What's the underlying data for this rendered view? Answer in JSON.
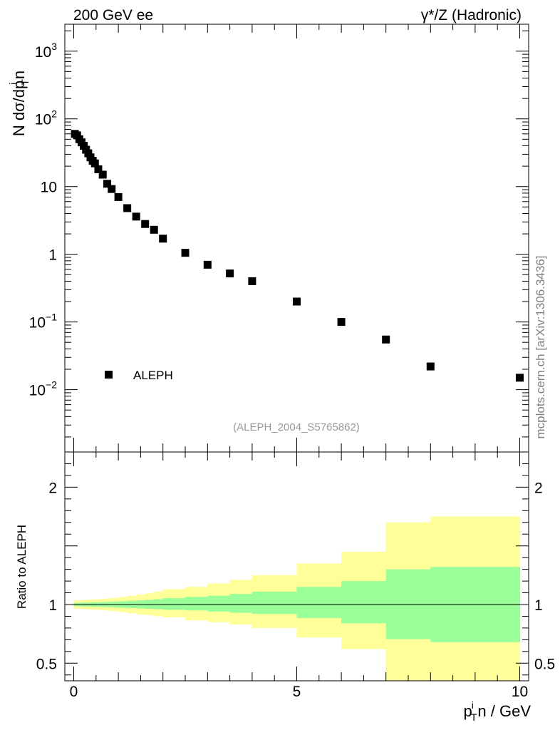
{
  "header": {
    "left": "200 GeV ee",
    "right": "γ*/Z (Hadronic)"
  },
  "watermark": "mcplots.cern.ch [arXiv:1306.3436]",
  "analysis_id": "(ALEPH_2004_S5765862)",
  "axis_labels": {
    "main_y": "N dσ/dp",
    "main_y_sub": "T",
    "main_y_sup": "i",
    "main_y_tail": "n",
    "ratio_y": "Ratio to ALEPH",
    "x_main": "p",
    "x_sup": "i",
    "x_sub": "T",
    "x_tail": "n / GeV"
  },
  "main_ticks": [
    {
      "value": 1000,
      "base": "10",
      "exp": "3"
    },
    {
      "value": 100,
      "base": "10",
      "exp": "2"
    },
    {
      "value": 10,
      "base": "10",
      "exp": ""
    },
    {
      "value": 1,
      "base": "1",
      "exp": ""
    },
    {
      "value": 0.1,
      "base": "10",
      "exp": "−1"
    },
    {
      "value": 0.01,
      "base": "10",
      "exp": "−2"
    }
  ],
  "ratio_ticks": [
    {
      "value": 2,
      "label": "2"
    },
    {
      "value": 1,
      "label": "1"
    },
    {
      "value": 0.5,
      "label": "0.5"
    }
  ],
  "x_ticks": [
    {
      "value": 0,
      "label": "0"
    },
    {
      "value": 5,
      "label": "5"
    },
    {
      "value": 10,
      "label": "10"
    }
  ],
  "colors": {
    "band_outer": "#ffff99",
    "band_inner": "#99ff99",
    "marker": "#000000"
  },
  "chart_data": [
    {
      "type": "scatter",
      "log_y": true,
      "xlim": [
        -0.2,
        10.2
      ],
      "ylim": [
        0.0012,
        2500
      ],
      "legend": {
        "position": "bottom-left",
        "entries": [
          "ALEPH"
        ]
      },
      "series": [
        {
          "name": "ALEPH",
          "marker": "square",
          "x": [
            0.025,
            0.075,
            0.125,
            0.175,
            0.225,
            0.275,
            0.325,
            0.375,
            0.425,
            0.475,
            0.55,
            0.65,
            0.75,
            0.85,
            1.0,
            1.2,
            1.4,
            1.6,
            1.8,
            2.0,
            2.5,
            3.0,
            3.5,
            4.0,
            5.0,
            6.0,
            7.0,
            8.0,
            10.0
          ],
          "y": [
            60,
            57,
            50,
            45,
            40,
            35,
            31,
            27,
            24,
            22,
            18,
            15,
            11,
            9.2,
            7,
            4.8,
            3.6,
            2.8,
            2.3,
            1.7,
            1.05,
            0.7,
            0.52,
            0.4,
            0.2,
            0.1,
            0.055,
            0.022,
            0.015
          ]
        }
      ]
    },
    {
      "type": "area",
      "xlim": [
        -0.2,
        10.2
      ],
      "ylim": [
        0.35,
        2.3
      ],
      "reference_line": 1,
      "bins": [
        0,
        0.2,
        0.4,
        0.6,
        0.8,
        1.0,
        1.2,
        1.4,
        1.6,
        1.8,
        2.0,
        2.5,
        3.0,
        3.5,
        4.0,
        5.0,
        6.0,
        7.0,
        8.0,
        10.0
      ],
      "inner_band_lo": [
        0.985,
        0.983,
        0.98,
        0.978,
        0.976,
        0.973,
        0.97,
        0.967,
        0.963,
        0.96,
        0.955,
        0.95,
        0.94,
        0.93,
        0.92,
        0.885,
        0.84,
        0.705,
        0.68
      ],
      "inner_band_hi": [
        1.015,
        1.017,
        1.02,
        1.022,
        1.025,
        1.028,
        1.032,
        1.036,
        1.04,
        1.045,
        1.055,
        1.065,
        1.075,
        1.09,
        1.11,
        1.15,
        1.2,
        1.3,
        1.32
      ],
      "outer_band_lo": [
        0.965,
        0.96,
        0.955,
        0.95,
        0.945,
        0.935,
        0.925,
        0.915,
        0.91,
        0.9,
        0.89,
        0.865,
        0.85,
        0.83,
        0.8,
        0.72,
        0.62,
        0.35,
        0.35
      ],
      "outer_band_hi": [
        1.035,
        1.04,
        1.045,
        1.05,
        1.055,
        1.065,
        1.075,
        1.085,
        1.095,
        1.11,
        1.13,
        1.15,
        1.18,
        1.21,
        1.25,
        1.35,
        1.45,
        1.7,
        1.75
      ]
    }
  ]
}
